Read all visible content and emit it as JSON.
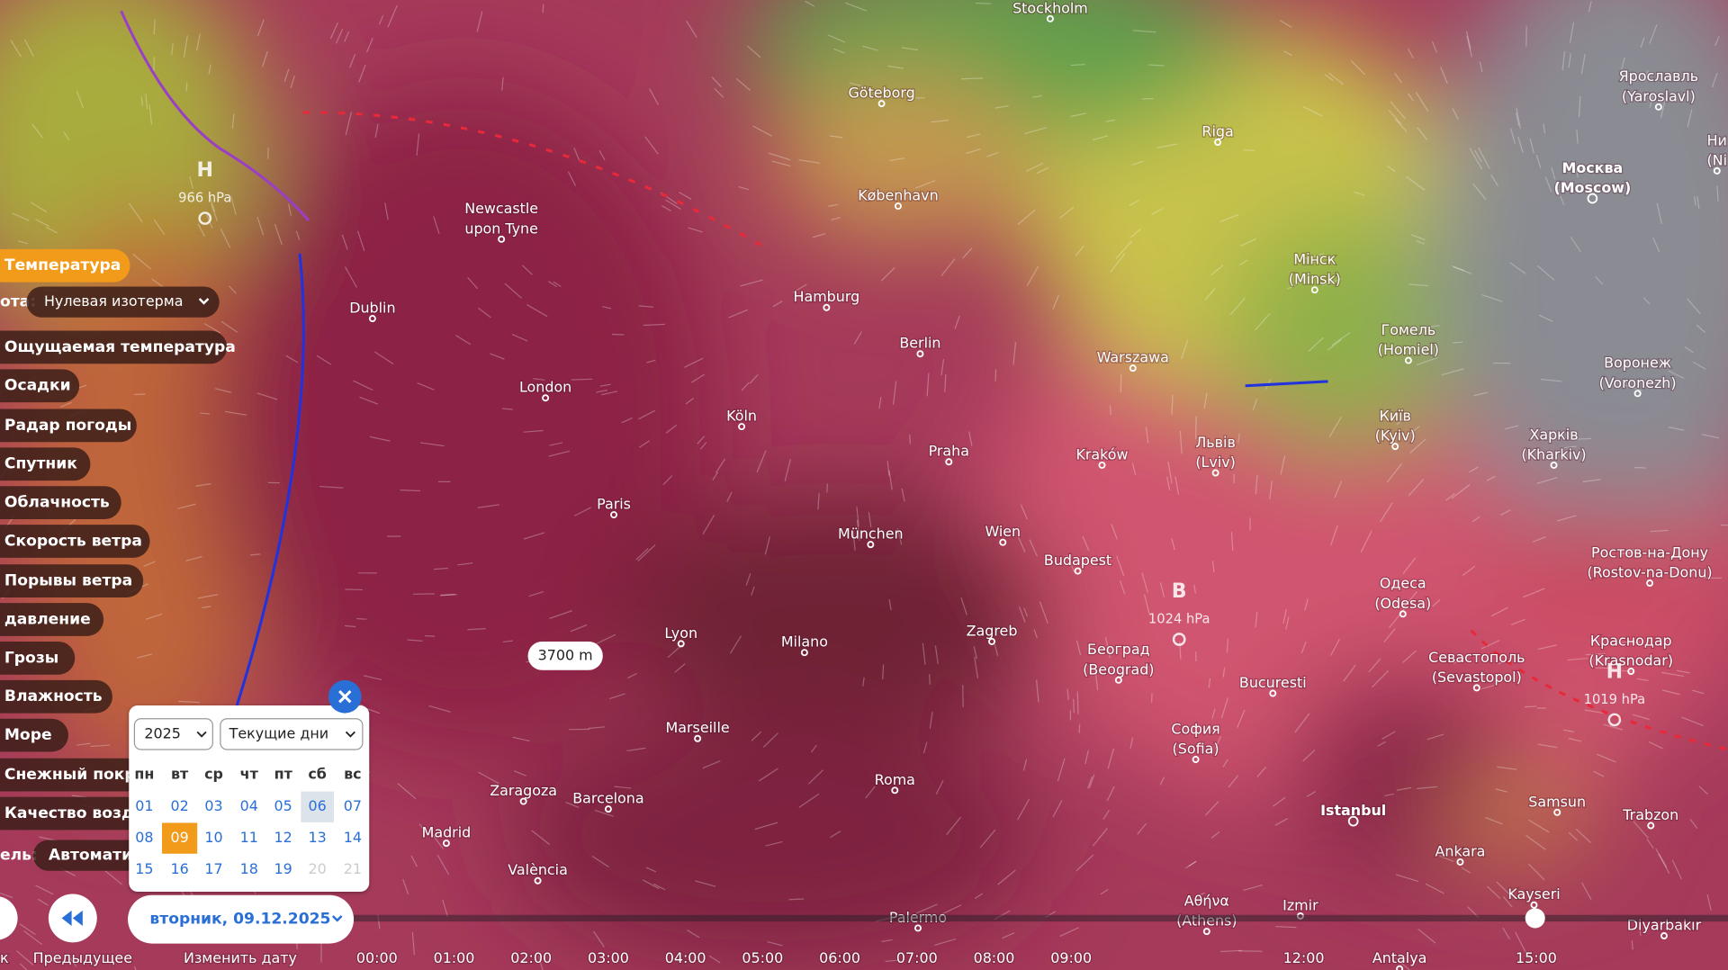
{
  "map": {
    "cities": [
      {
        "name": "Stockholm"
      },
      {
        "name": "Göteborg"
      },
      {
        "name": "Riga"
      },
      {
        "name": "København"
      },
      {
        "name": "Ярославль",
        "alt": "(Yaroslavl)"
      },
      {
        "name": "Москва",
        "alt": "(Moscow)"
      },
      {
        "name": "Ни",
        "alt": "(Ni"
      },
      {
        "name": "Newcastle",
        "alt": "upon Tyne"
      },
      {
        "name": "Dublin"
      },
      {
        "name": "Hamburg"
      },
      {
        "name": "Berlin"
      },
      {
        "name": "Warszawa"
      },
      {
        "name": "Мінск",
        "alt": "(Minsk)"
      },
      {
        "name": "Гомель",
        "alt": "(Homiel)"
      },
      {
        "name": "Воронеж",
        "alt": "(Voronezh)"
      },
      {
        "name": "London"
      },
      {
        "name": "Köln"
      },
      {
        "name": "Київ",
        "alt": "(Kyiv)"
      },
      {
        "name": "Харків",
        "alt": "(Kharkiv)"
      },
      {
        "name": "Львів",
        "alt": "(Lviv)"
      },
      {
        "name": "Praha"
      },
      {
        "name": "Kraków"
      },
      {
        "name": "Paris"
      },
      {
        "name": "München"
      },
      {
        "name": "Wien"
      },
      {
        "name": "Budapest"
      },
      {
        "name": "Ростов-на-Дону",
        "alt": "(Rostov-na-Donu)"
      },
      {
        "name": "Одеса",
        "alt": "(Odesa)"
      },
      {
        "name": "Lyon"
      },
      {
        "name": "Milano"
      },
      {
        "name": "Zagreb"
      },
      {
        "name": "Београд",
        "alt": "(Beograd)"
      },
      {
        "name": "Краснодар",
        "alt": "(Krasnodar)"
      },
      {
        "name": "Севастополь",
        "alt": "(Sevastopol)"
      },
      {
        "name": "Bucuresti"
      },
      {
        "name": "Marseille"
      },
      {
        "name": "София",
        "alt": "(Sofia)"
      },
      {
        "name": "Roma"
      },
      {
        "name": "Zaragoza"
      },
      {
        "name": "Barcelona"
      },
      {
        "name": "Madrid"
      },
      {
        "name": "Istanbul"
      },
      {
        "name": "Samsun"
      },
      {
        "name": "Trabzon"
      },
      {
        "name": "Ankara"
      },
      {
        "name": "València"
      },
      {
        "name": "Kayseri"
      },
      {
        "name": "Palermo"
      },
      {
        "name": "Αθήνα",
        "alt": "(Athens)"
      },
      {
        "name": "Izmir"
      },
      {
        "name": "Diyarbakır"
      },
      {
        "name": "Antalya"
      }
    ],
    "pressure": [
      {
        "letter": "H",
        "value": "966 hPa"
      },
      {
        "letter": "B",
        "value": "1024 hPa"
      },
      {
        "letter": "H",
        "value": "1019 hPa"
      }
    ],
    "tooltip": "3700 m"
  },
  "menu": {
    "active": "Температура",
    "level_label": "ота:",
    "level_value": "Нулевая изотерма",
    "items": [
      "Ощущаемая температура",
      "Осадки",
      "Радар погоды",
      "Спутник",
      "Облачность",
      "Скорость ветра",
      "Порывы ветра",
      "давление",
      "Грозы",
      "Влажность",
      "Море",
      "Снежный покро",
      "Качество возду"
    ],
    "model_label": "ель:",
    "model_value": "Автомати"
  },
  "calendar": {
    "year": "2025",
    "mode": "Текущие дни",
    "weekdays": [
      "пн",
      "вт",
      "ср",
      "чт",
      "пт",
      "сб",
      "вс"
    ],
    "days": [
      [
        "01",
        "02",
        "03",
        "04",
        "05",
        "06",
        "07"
      ],
      [
        "08",
        "09",
        "10",
        "11",
        "12",
        "13",
        "14"
      ],
      [
        "15",
        "16",
        "17",
        "18",
        "19",
        "20",
        "21"
      ]
    ]
  },
  "controls": {
    "date": "вторник, 09.12.2025",
    "labels": [
      "к",
      "Предыдущее",
      "Изменить дату"
    ]
  },
  "timeline": {
    "hours": [
      "00:00",
      "01:00",
      "02:00",
      "03:00",
      "04:00",
      "05:00",
      "06:00",
      "07:00",
      "08:00",
      "09:00",
      "12:00",
      "15:00"
    ]
  }
}
